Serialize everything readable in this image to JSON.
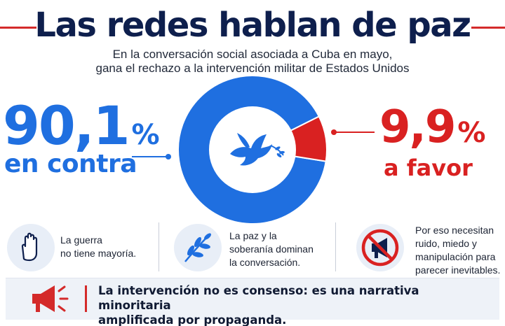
{
  "header": {
    "title": "Las redes hablan de paz",
    "subtitle_line1": "En la conversación social asociada a Cuba en mayo,",
    "subtitle_line2": "gana el rechazo a la intervención militar de Estados Unidos"
  },
  "chart_data": {
    "type": "pie",
    "title": "Las redes hablan de paz",
    "series": [
      {
        "name": "en contra",
        "value": 90.1,
        "display": "90,1",
        "unit": "%",
        "color": "#1f6fe0"
      },
      {
        "name": "a favor",
        "value": 9.9,
        "display": "9,9",
        "unit": "%",
        "color": "#d92121"
      }
    ],
    "hole": "dove-icon"
  },
  "features": [
    {
      "icon": "raised-hand-icon",
      "text_line1": "La guerra",
      "text_line2": "no tiene mayoría."
    },
    {
      "icon": "olive-branch-icon",
      "text_line1": "La paz y la",
      "text_line2": "soberanía dominan",
      "text_line3": "la conversación."
    },
    {
      "icon": "no-megaphone-icon",
      "text_line1": "Por eso necesitan",
      "text_line2": "ruido, miedo y",
      "text_line3": "manipulación para",
      "text_line4": "parecer inevitables."
    }
  ],
  "banner": {
    "icon": "megaphone-icon",
    "line1": "La intervención no es consenso: es una narrativa minoritaria",
    "line2": "amplificada por propaganda.",
    "accent": "#d42a2a"
  }
}
